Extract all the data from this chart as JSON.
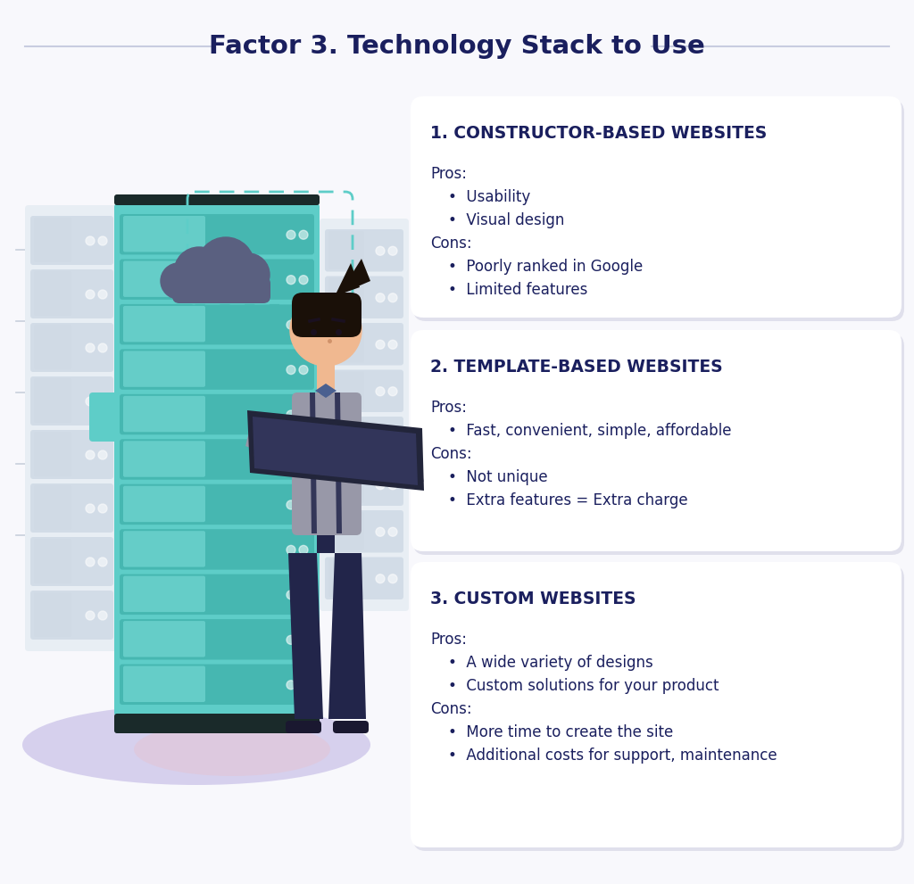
{
  "title": "Factor 3. Technology Stack to Use",
  "title_color": "#1a1f5e",
  "title_fontsize": 21,
  "bg_color": "#f8f8fc",
  "line_color": "#c8cce0",
  "card_bg": "#ffffff",
  "card_shadow": "#e0e0ec",
  "heading_color": "#1a1f5e",
  "body_color": "#1a1f5e",
  "cards": [
    {
      "title": "1. CONSTRUCTOR-BASED WEBSITES",
      "pros_label": "Pros:",
      "pros": [
        "Usability",
        "Visual design"
      ],
      "cons_label": "Cons:",
      "cons": [
        "Poorly ranked in Google",
        "Limited features"
      ]
    },
    {
      "title": "2. TEMPLATE-BASED WEBSITES",
      "pros_label": "Pros:",
      "pros": [
        "Fast, convenient, simple, affordable"
      ],
      "cons_label": "Cons:",
      "cons": [
        "Not unique",
        "Extra features = Extra charge"
      ]
    },
    {
      "title": "3. CUSTOM WEBSITES",
      "pros_label": "Pros:",
      "pros": [
        "A wide variety of designs",
        "Custom solutions for your product"
      ],
      "cons_label": "Cons:",
      "cons": [
        "More time to create the site",
        "Additional costs for support, maintenance"
      ]
    }
  ],
  "ellipse_color_1": "#c8c0e8",
  "ellipse_color_2": "#e8c0cc",
  "server_teal": "#5ecdc8",
  "server_teal_dark": "#3aada8",
  "server_teal_slot": "#2a9d97",
  "server_gray": "#dce4ec",
  "server_gray_dark": "#b8c4d0",
  "cloud_color": "#5a6080",
  "dashed_color": "#5ecdc8",
  "person_shirt": "#9898a8",
  "person_pants": "#22254a",
  "person_skin": "#f0b890",
  "person_hair": "#1a1008",
  "laptop_dark": "#22253a",
  "laptop_screen": "#32355a",
  "person_suspender": "#22254a",
  "server_base": "#2a2a2a"
}
